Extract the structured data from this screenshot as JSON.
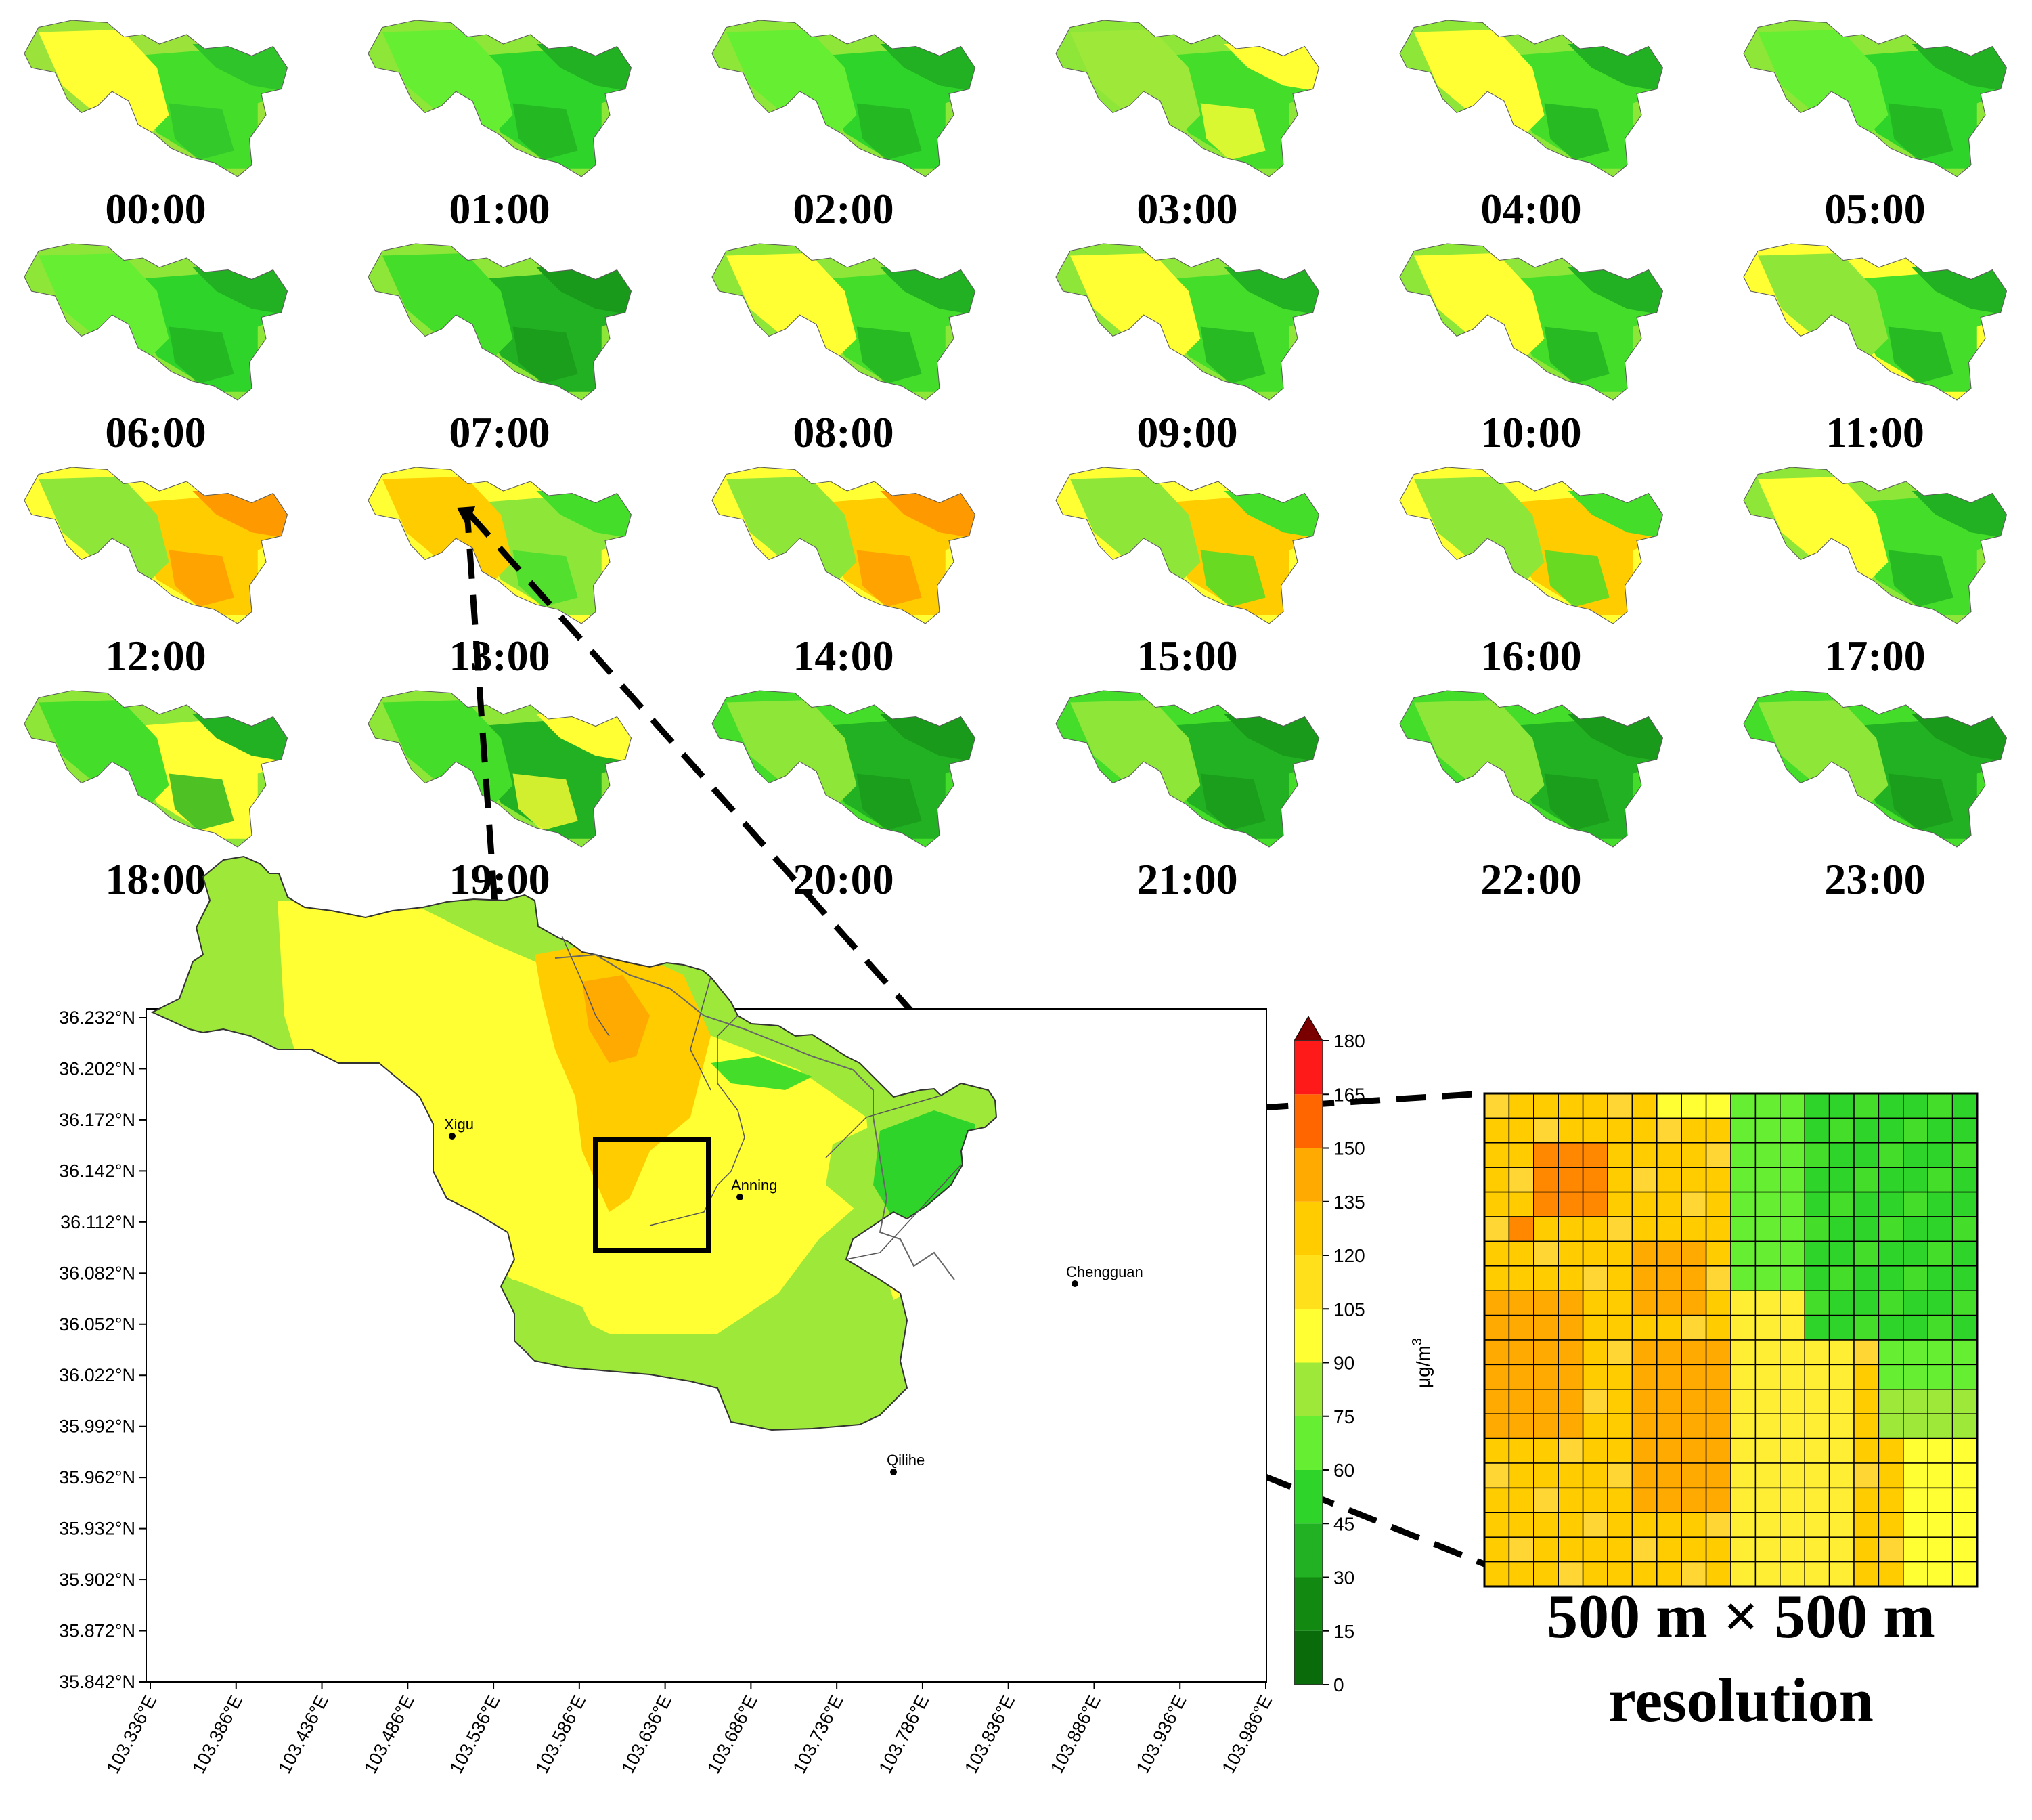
{
  "hour_panels": [
    {
      "label": "00:00",
      "palette": [
        "#9be33a",
        "#ffff33",
        "#44dd2a",
        "#2fc42a"
      ]
    },
    {
      "label": "01:00",
      "palette": [
        "#8ee639",
        "#66ee33",
        "#2fd42a",
        "#22b122"
      ]
    },
    {
      "label": "02:00",
      "palette": [
        "#8ee639",
        "#66ee33",
        "#2fd42a",
        "#22b122"
      ]
    },
    {
      "label": "03:00",
      "palette": [
        "#8ee639",
        "#9ee83a",
        "#44dd2a",
        "#ffff33"
      ]
    },
    {
      "label": "04:00",
      "palette": [
        "#8ee639",
        "#ffff33",
        "#44dd2a",
        "#22b122"
      ]
    },
    {
      "label": "05:00",
      "palette": [
        "#8ee639",
        "#66ee33",
        "#2fd42a",
        "#22b122"
      ]
    },
    {
      "label": "06:00",
      "palette": [
        "#8ee639",
        "#66ee33",
        "#2fd42a",
        "#22b122"
      ]
    },
    {
      "label": "07:00",
      "palette": [
        "#8ee639",
        "#44dd2a",
        "#22b122",
        "#1a9a1a"
      ]
    },
    {
      "label": "08:00",
      "palette": [
        "#8ee639",
        "#ffff33",
        "#44dd2a",
        "#22b122"
      ]
    },
    {
      "label": "09:00",
      "palette": [
        "#8ee639",
        "#ffff33",
        "#44dd2a",
        "#22b122"
      ]
    },
    {
      "label": "10:00",
      "palette": [
        "#8ee639",
        "#ffff33",
        "#44dd2a",
        "#22b122"
      ]
    },
    {
      "label": "11:00",
      "palette": [
        "#ffff33",
        "#8ee639",
        "#44dd2a",
        "#22b122"
      ]
    },
    {
      "label": "12:00",
      "palette": [
        "#ffff33",
        "#8ee639",
        "#ffcc00",
        "#ff9900"
      ]
    },
    {
      "label": "13:00",
      "palette": [
        "#ffff33",
        "#ffcc00",
        "#8ee639",
        "#44dd2a"
      ]
    },
    {
      "label": "14:00",
      "palette": [
        "#ffff33",
        "#8ee639",
        "#ffcc00",
        "#ff9900"
      ]
    },
    {
      "label": "15:00",
      "palette": [
        "#ffff33",
        "#8ee639",
        "#ffcc00",
        "#44dd2a"
      ]
    },
    {
      "label": "16:00",
      "palette": [
        "#ffff33",
        "#8ee639",
        "#ffcc00",
        "#44dd2a"
      ]
    },
    {
      "label": "17:00",
      "palette": [
        "#8ee639",
        "#ffff33",
        "#44dd2a",
        "#22b122"
      ]
    },
    {
      "label": "18:00",
      "palette": [
        "#8ee639",
        "#44dd2a",
        "#ffff33",
        "#22b122"
      ]
    },
    {
      "label": "19:00",
      "palette": [
        "#8ee639",
        "#44dd2a",
        "#22b122",
        "#ffff33"
      ]
    },
    {
      "label": "20:00",
      "palette": [
        "#44dd2a",
        "#8ee639",
        "#22b122",
        "#1a9a1a"
      ]
    },
    {
      "label": "21:00",
      "palette": [
        "#44dd2a",
        "#8ee639",
        "#22b122",
        "#1a9a1a"
      ]
    },
    {
      "label": "22:00",
      "palette": [
        "#44dd2a",
        "#8ee639",
        "#22b122",
        "#1a9a1a"
      ]
    },
    {
      "label": "23:00",
      "palette": [
        "#44dd2a",
        "#8ee639",
        "#22b122",
        "#1a9a1a"
      ]
    }
  ],
  "main_map": {
    "lat_ticks": [
      "36.232°N",
      "36.202°N",
      "36.172°N",
      "36.142°N",
      "36.112°N",
      "36.082°N",
      "36.052°N",
      "36.022°N",
      "35.992°N",
      "35.962°N",
      "35.932°N",
      "35.902°N",
      "35.872°N",
      "35.842°N"
    ],
    "lon_ticks": [
      "103.336°E",
      "103.386°E",
      "103.436°E",
      "103.486°E",
      "103.536°E",
      "103.586°E",
      "103.636°E",
      "103.686°E",
      "103.736°E",
      "103.786°E",
      "103.836°E",
      "103.886°E",
      "103.936°E",
      "103.986°E"
    ],
    "cities": [
      "Xigu",
      "Anning",
      "Chengguan",
      "Qilihe"
    ]
  },
  "colorbar": {
    "unit": "μg/m",
    "unit_sup": "3",
    "levels": [
      "0",
      "15",
      "30",
      "45",
      "60",
      "75",
      "90",
      "105",
      "120",
      "135",
      "150",
      "165",
      "180"
    ],
    "colors": [
      "#0a6b0a",
      "#128a12",
      "#22b122",
      "#2fd42a",
      "#66ee33",
      "#9ee83a",
      "#ffff33",
      "#ffe01a",
      "#ffcc00",
      "#ffaa00",
      "#ff6600",
      "#ff1a1a",
      "#cc0000"
    ],
    "top_arrow_color": "#7a0000"
  },
  "zoom": {
    "caption_line1": "500 m × 500 m",
    "caption_line2": "resolution"
  }
}
